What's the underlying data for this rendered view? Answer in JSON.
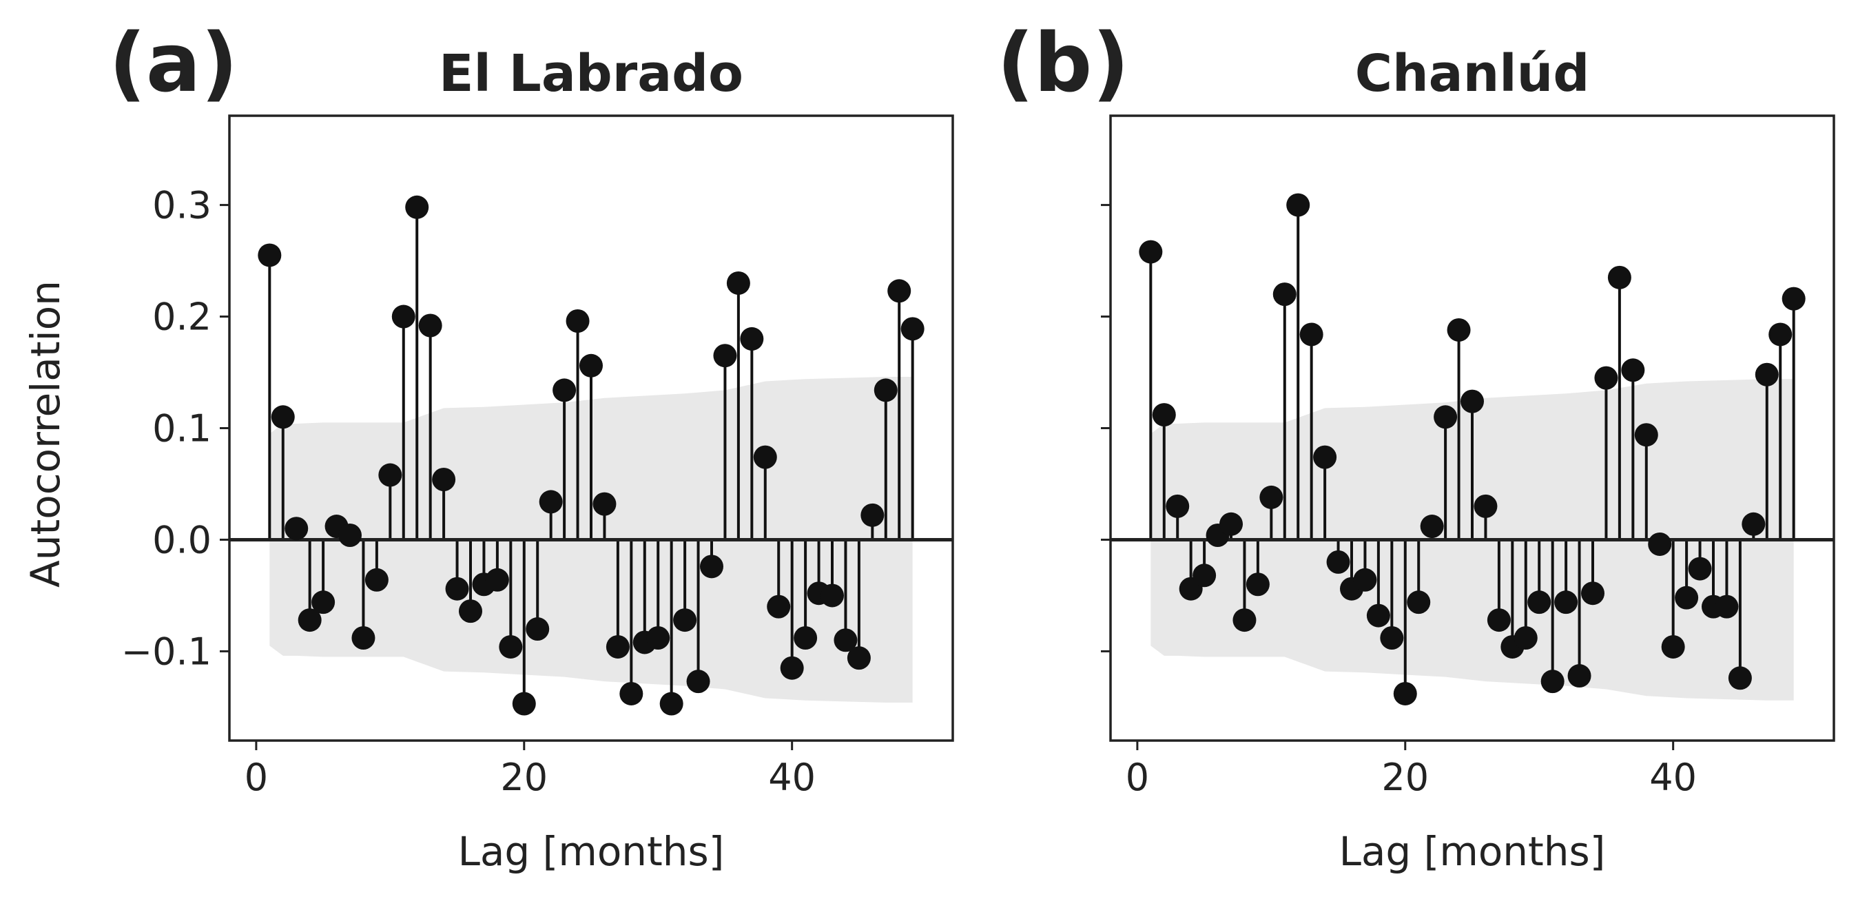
{
  "chart_data": [
    {
      "type": "stem",
      "panel_label": "(a)",
      "title": "El Labrado",
      "xlabel": "Lag [months]",
      "ylabel": "Autocorrelation",
      "xticks": [
        0,
        20,
        40
      ],
      "yticks": [
        -0.1,
        0.0,
        0.1,
        0.2,
        0.3
      ],
      "ytick_labels": [
        "−0.1",
        "0.0",
        "0.1",
        "0.2",
        "0.3"
      ],
      "xticks_labels": [
        "0",
        "20",
        "40"
      ],
      "xlim": [
        -2,
        52
      ],
      "ylim": [
        -0.18,
        0.38
      ],
      "lags": [
        1,
        2,
        3,
        4,
        5,
        6,
        7,
        8,
        9,
        10,
        11,
        12,
        13,
        14,
        15,
        16,
        17,
        18,
        19,
        20,
        21,
        22,
        23,
        24,
        25,
        26,
        27,
        28,
        29,
        30,
        31,
        32,
        33,
        34,
        35,
        36,
        37,
        38,
        39,
        40,
        41,
        42,
        43,
        44,
        45,
        46,
        47,
        48,
        49
      ],
      "values": [
        0.255,
        0.11,
        0.01,
        -0.072,
        -0.056,
        0.012,
        0.004,
        -0.088,
        -0.036,
        0.058,
        0.2,
        0.298,
        0.192,
        0.054,
        -0.044,
        -0.064,
        -0.04,
        -0.036,
        -0.096,
        -0.147,
        -0.08,
        0.034,
        0.134,
        0.196,
        0.156,
        0.032,
        -0.096,
        -0.138,
        -0.092,
        -0.088,
        -0.147,
        -0.072,
        -0.127,
        -0.024,
        0.165,
        0.23,
        0.18,
        0.074,
        -0.06,
        -0.115,
        -0.088,
        -0.048,
        -0.05,
        -0.09,
        -0.106,
        0.022,
        0.134,
        0.223,
        0.189
      ],
      "confidence_band": {
        "lags": [
          1,
          2,
          3,
          5,
          8,
          11,
          14,
          17,
          20,
          23,
          26,
          29,
          32,
          35,
          38,
          41,
          44,
          47,
          49
        ],
        "upper": [
          0.095,
          0.104,
          0.104,
          0.105,
          0.105,
          0.105,
          0.118,
          0.119,
          0.121,
          0.123,
          0.127,
          0.129,
          0.131,
          0.134,
          0.142,
          0.144,
          0.145,
          0.146,
          0.146
        ],
        "lower": [
          -0.095,
          -0.104,
          -0.104,
          -0.105,
          -0.105,
          -0.105,
          -0.118,
          -0.119,
          -0.121,
          -0.123,
          -0.127,
          -0.129,
          -0.131,
          -0.134,
          -0.142,
          -0.144,
          -0.145,
          -0.146,
          -0.146
        ]
      },
      "grid": false
    },
    {
      "type": "stem",
      "panel_label": "(b)",
      "title": "Chanlúd",
      "xlabel": "Lag [months]",
      "ylabel": "",
      "xticks": [
        0,
        20,
        40
      ],
      "xticks_labels": [
        "0",
        "20",
        "40"
      ],
      "yticks": [
        -0.1,
        0.0,
        0.1,
        0.2,
        0.3
      ],
      "ytick_labels": [],
      "xlim": [
        -2,
        52
      ],
      "ylim": [
        -0.18,
        0.38
      ],
      "lags": [
        1,
        2,
        3,
        4,
        5,
        6,
        7,
        8,
        9,
        10,
        11,
        12,
        13,
        14,
        15,
        16,
        17,
        18,
        19,
        20,
        21,
        22,
        23,
        24,
        25,
        26,
        27,
        28,
        29,
        30,
        31,
        32,
        33,
        34,
        35,
        36,
        37,
        38,
        39,
        40,
        41,
        42,
        43,
        44,
        45,
        46,
        47,
        48,
        49
      ],
      "values": [
        0.258,
        0.112,
        0.03,
        -0.044,
        -0.032,
        0.004,
        0.014,
        -0.072,
        -0.04,
        0.038,
        0.22,
        0.3,
        0.184,
        0.074,
        -0.02,
        -0.044,
        -0.036,
        -0.068,
        -0.088,
        -0.138,
        -0.056,
        0.012,
        0.11,
        0.188,
        0.124,
        0.03,
        -0.072,
        -0.096,
        -0.088,
        -0.056,
        -0.127,
        -0.056,
        -0.122,
        -0.048,
        0.145,
        0.235,
        0.152,
        0.094,
        -0.004,
        -0.096,
        -0.052,
        -0.026,
        -0.06,
        -0.06,
        -0.124,
        0.014,
        0.148,
        0.184,
        0.216
      ],
      "confidence_band": {
        "lags": [
          1,
          2,
          3,
          5,
          8,
          11,
          14,
          17,
          20,
          23,
          26,
          29,
          32,
          35,
          38,
          41,
          44,
          47,
          49
        ],
        "upper": [
          0.095,
          0.104,
          0.104,
          0.105,
          0.105,
          0.105,
          0.118,
          0.119,
          0.121,
          0.123,
          0.127,
          0.129,
          0.131,
          0.134,
          0.14,
          0.142,
          0.143,
          0.144,
          0.144
        ],
        "lower": [
          -0.095,
          -0.104,
          -0.104,
          -0.105,
          -0.105,
          -0.105,
          -0.118,
          -0.119,
          -0.121,
          -0.123,
          -0.127,
          -0.129,
          -0.131,
          -0.134,
          -0.14,
          -0.142,
          -0.143,
          -0.144,
          -0.144
        ]
      },
      "grid": false
    }
  ],
  "colors": {
    "marker": "#111111",
    "stem": "#111111",
    "band": "#e8e8e8",
    "axis": "#222222"
  }
}
